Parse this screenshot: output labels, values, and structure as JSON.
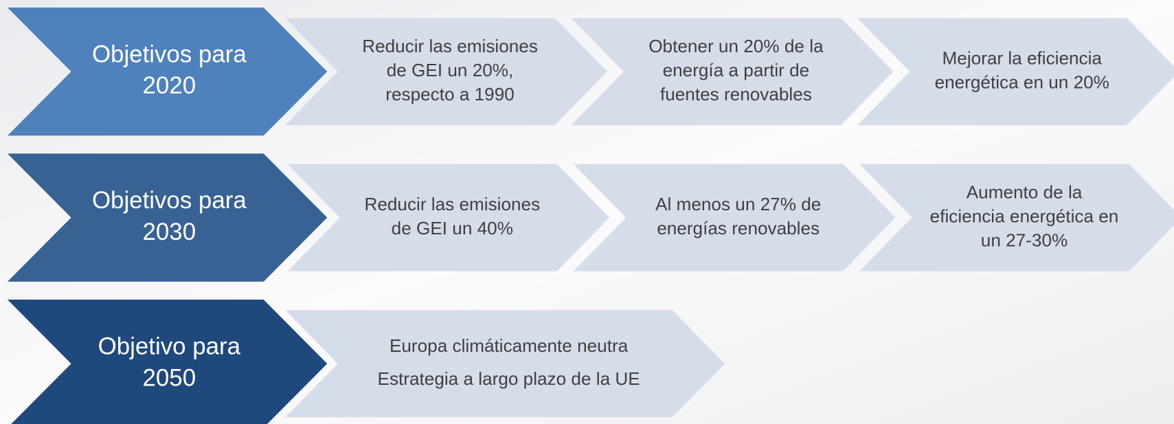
{
  "rows": [
    {
      "title": [
        "Objetivos para",
        "2020"
      ],
      "items": [
        [
          "Reducir las emisiones",
          "de GEI un 20%,",
          "respecto a 1990"
        ],
        [
          "Obtener un 20% de la",
          "energía a partir de",
          "fuentes renovables"
        ],
        [
          "Mejorar la eficiencia",
          "energética en un 20%"
        ]
      ]
    },
    {
      "title": [
        "Objetivos para",
        "2030"
      ],
      "items": [
        [
          "Reducir las emisiones",
          "de GEI un 40%"
        ],
        [
          "Al menos un 27% de",
          "energías renovables"
        ],
        [
          "Aumento de la",
          "eficiencia energética en",
          "un 27-30%"
        ]
      ]
    },
    {
      "title": [
        "Objetivo para",
        "2050"
      ],
      "items": [
        [
          "Europa climáticamente neutra",
          "Estrategia a largo plazo de la UE"
        ]
      ]
    }
  ]
}
